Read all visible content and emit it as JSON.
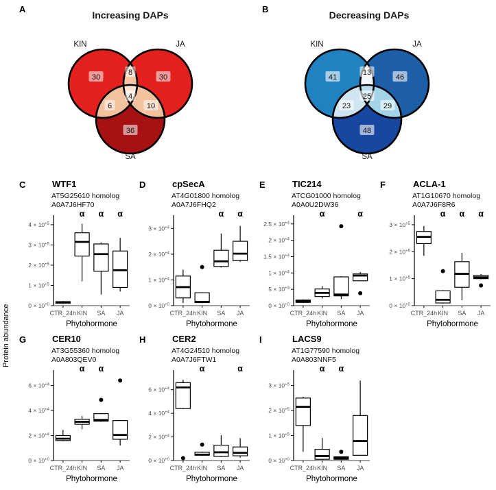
{
  "figure": {
    "ylabel_shared": "Protein abundance",
    "alpha_symbol": "α",
    "text_colors": {
      "axis_text": "#4d4d4d",
      "axis_line": "#000000",
      "box_fill": "#ffffff"
    }
  },
  "chart_data": [
    {
      "type": "venn",
      "letter": "A",
      "title": "Increasing DAPs",
      "sets": [
        "KIN",
        "JA",
        "SA"
      ],
      "colors": {
        "kin": "#e2201d",
        "ja": "#e2201d",
        "sa": "#a81114",
        "kin_ja": "#f6c5a3",
        "kin_sa": "#f5c2a0",
        "ja_sa": "#f5c2a0",
        "center": "#fbe3d2",
        "outline": "#000000",
        "chip": "rgba(255,255,255,0.55)"
      },
      "counts": {
        "kin": "30",
        "ja": "30",
        "sa": "36",
        "kin_ja": "8",
        "kin_sa": "6",
        "ja_sa": "10",
        "center": "4"
      }
    },
    {
      "type": "venn",
      "letter": "B",
      "title": "Decreasing DAPs",
      "sets": [
        "KIN",
        "JA",
        "SA"
      ],
      "colors": {
        "kin": "#2182c1",
        "ja": "#1d5fa9",
        "sa": "#17479e",
        "kin_ja": "#f3f7fb",
        "kin_sa": "#d0e5f2",
        "ja_sa": "#a3d4e8",
        "center": "#badcec",
        "outline": "#000000",
        "chip": "rgba(255,255,255,0.6)"
      },
      "counts": {
        "kin": "41",
        "ja": "46",
        "sa": "48",
        "kin_ja": "13",
        "kin_sa": "23",
        "ja_sa": "29",
        "center": "25"
      }
    },
    {
      "type": "boxplot",
      "letter": "C",
      "title": "WTF1",
      "subtitle": [
        "AT5G25610 homolog",
        "A0A7J6HF70"
      ],
      "xlabel": "Phytohormone",
      "categories": [
        "CTR_24h",
        "KIN",
        "SA",
        "JA"
      ],
      "alpha": [
        0,
        1,
        1,
        1
      ],
      "ylim": [
        0,
        420000
      ],
      "yticks": [
        {
          "v": 0,
          "m": "0",
          "e": "+0"
        },
        {
          "v": 100000,
          "m": "1",
          "e": "+5"
        },
        {
          "v": 200000,
          "m": "2",
          "e": "+5"
        },
        {
          "v": 300000,
          "m": "3",
          "e": "+5"
        },
        {
          "v": 400000,
          "m": "4",
          "e": "+5"
        }
      ],
      "boxes": [
        {
          "low": 9000,
          "q1": 12000,
          "median": 16000,
          "q3": 20000,
          "high": 23000,
          "outliers": []
        },
        {
          "low": 120000,
          "q1": 245000,
          "median": 315000,
          "q3": 360000,
          "high": 405000,
          "outliers": []
        },
        {
          "low": 55000,
          "q1": 170000,
          "median": 255000,
          "q3": 305000,
          "high": 312000,
          "outliers": []
        },
        {
          "low": 70000,
          "q1": 90000,
          "median": 175000,
          "q3": 270000,
          "high": 335000,
          "outliers": []
        }
      ]
    },
    {
      "type": "boxplot",
      "letter": "D",
      "title": "cpSecA",
      "subtitle": [
        "AT4G01800 homolog",
        "A0A7J6FHQ2"
      ],
      "xlabel": "Phytohormone",
      "categories": [
        "CTR_24h",
        "KIN",
        "SA",
        "JA"
      ],
      "alpha": [
        0,
        0,
        1,
        1
      ],
      "ylim": [
        0,
        33000
      ],
      "yticks": [
        {
          "v": 0,
          "m": "0",
          "e": "+0"
        },
        {
          "v": 10000,
          "m": "1",
          "e": "+4"
        },
        {
          "v": 20000,
          "m": "2",
          "e": "+4"
        },
        {
          "v": 30000,
          "m": "3",
          "e": "+4"
        }
      ],
      "boxes": [
        {
          "low": 1000,
          "q1": 3000,
          "median": 7200,
          "q3": 11500,
          "high": 14000,
          "outliers": []
        },
        {
          "low": 1000,
          "q1": 1200,
          "median": 1500,
          "q3": 5000,
          "high": 5200,
          "outliers": [
            15000
          ]
        },
        {
          "low": 14800,
          "q1": 15200,
          "median": 17200,
          "q3": 21500,
          "high": 28000,
          "outliers": []
        },
        {
          "low": 17000,
          "q1": 17500,
          "median": 20200,
          "q3": 25000,
          "high": 31000,
          "outliers": []
        }
      ]
    },
    {
      "type": "boxplot",
      "letter": "E",
      "title": "TIC214",
      "subtitle": [
        "ATCG01000 homolog",
        "A0A0U2DW36"
      ],
      "xlabel": "Phytohormone",
      "categories": [
        "CTR_24h",
        "KIN",
        "SA",
        "JA"
      ],
      "alpha": [
        0,
        1,
        0,
        1
      ],
      "ylim": [
        0,
        26000
      ],
      "yticks": [
        {
          "v": 0,
          "m": "0",
          "e": "+0"
        },
        {
          "v": 5000,
          "m": "5",
          "e": "+3"
        },
        {
          "v": 10000,
          "m": "1",
          "e": "+4"
        },
        {
          "v": 15000,
          "m": "1.5",
          "e": "+4"
        },
        {
          "v": 20000,
          "m": "2",
          "e": "+4"
        },
        {
          "v": 25000,
          "m": "2.5",
          "e": "+4"
        }
      ],
      "boxes": [
        {
          "low": 800,
          "q1": 1000,
          "median": 1300,
          "q3": 1700,
          "high": 1900,
          "outliers": []
        },
        {
          "low": 2200,
          "q1": 2800,
          "median": 3900,
          "q3": 5100,
          "high": 6000,
          "outliers": []
        },
        {
          "low": 2000,
          "q1": 3000,
          "median": 3400,
          "q3": 8800,
          "high": 9000,
          "outliers": [
            24300
          ]
        },
        {
          "low": 7500,
          "q1": 7600,
          "median": 9200,
          "q3": 9700,
          "high": 10300,
          "outliers": [
            3800
          ]
        }
      ]
    },
    {
      "type": "boxplot",
      "letter": "F",
      "title": "ACLA-1",
      "subtitle": [
        "AT1G10670 homolog",
        "A0A7J6F8R6"
      ],
      "xlabel": "Phytohormone",
      "categories": [
        "CTR_24h",
        "KIN",
        "SA",
        "JA"
      ],
      "alpha": [
        0,
        1,
        1,
        1
      ],
      "ylim": [
        0,
        315000
      ],
      "yticks": [
        {
          "v": 0,
          "m": "0",
          "e": "+0"
        },
        {
          "v": 100000,
          "m": "1",
          "e": "+5"
        },
        {
          "v": 200000,
          "m": "2",
          "e": "+5"
        },
        {
          "v": 300000,
          "m": "3",
          "e": "+5"
        }
      ],
      "boxes": [
        {
          "low": 185000,
          "q1": 230000,
          "median": 255000,
          "q3": 275000,
          "high": 295000,
          "outliers": []
        },
        {
          "low": 8000,
          "q1": 10000,
          "median": 22000,
          "q3": 55000,
          "high": 57000,
          "outliers": [
            128000
          ]
        },
        {
          "low": 20000,
          "q1": 68000,
          "median": 118000,
          "q3": 163000,
          "high": 195000,
          "outliers": []
        },
        {
          "low": 98000,
          "q1": 100000,
          "median": 105000,
          "q3": 112000,
          "high": 117000,
          "outliers": [
            75000
          ]
        }
      ]
    },
    {
      "type": "boxplot",
      "letter": "G",
      "title": "CER10",
      "subtitle": [
        "AT3G55360 homolog",
        "A0A803QEV0"
      ],
      "xlabel": "Phytohormone",
      "categories": [
        "CTR_24h",
        "KIN",
        "SA",
        "JA"
      ],
      "alpha": [
        0,
        1,
        1,
        0
      ],
      "ylim": [
        0,
        68000
      ],
      "yticks": [
        {
          "v": 0,
          "m": "0",
          "e": "+0"
        },
        {
          "v": 20000,
          "m": "2",
          "e": "+4"
        },
        {
          "v": 40000,
          "m": "4",
          "e": "+4"
        },
        {
          "v": 60000,
          "m": "6",
          "e": "+4"
        }
      ],
      "boxes": [
        {
          "low": 15500,
          "q1": 16000,
          "median": 17500,
          "q3": 20000,
          "high": 24500,
          "outliers": []
        },
        {
          "low": 25000,
          "q1": 29000,
          "median": 31000,
          "q3": 33000,
          "high": 35500,
          "outliers": []
        },
        {
          "low": 31000,
          "q1": 31500,
          "median": 32500,
          "q3": 37500,
          "high": 38000,
          "outliers": [
            48500
          ]
        },
        {
          "low": 12000,
          "q1": 17000,
          "median": 20500,
          "q3": 32000,
          "high": 32500,
          "outliers": [
            64000
          ]
        }
      ]
    },
    {
      "type": "boxplot",
      "letter": "H",
      "title": "CER2",
      "subtitle": [
        "AT4G24510 homolog",
        "A0A7J6FTW1"
      ],
      "xlabel": "Phytohormone",
      "categories": [
        "CTR_24h",
        "KIN",
        "SA",
        "JA"
      ],
      "alpha": [
        0,
        1,
        0,
        1
      ],
      "ylim": [
        0,
        72000
      ],
      "yticks": [
        {
          "v": 0,
          "m": "0",
          "e": "+0"
        },
        {
          "v": 20000,
          "m": "2",
          "e": "+4"
        },
        {
          "v": 40000,
          "m": "4",
          "e": "+4"
        },
        {
          "v": 60000,
          "m": "6",
          "e": "+4"
        }
      ],
      "boxes": [
        {
          "low": 43500,
          "q1": 44000,
          "median": 62000,
          "q3": 66000,
          "high": 68500,
          "outliers": [
            2000
          ]
        },
        {
          "low": 4000,
          "q1": 4500,
          "median": 5000,
          "q3": 7000,
          "high": 7500,
          "outliers": [
            13500
          ]
        },
        {
          "low": 3000,
          "q1": 3500,
          "median": 7000,
          "q3": 13000,
          "high": 21500,
          "outliers": []
        },
        {
          "low": 2500,
          "q1": 4000,
          "median": 6500,
          "q3": 11500,
          "high": 19000,
          "outliers": []
        }
      ]
    },
    {
      "type": "boxplot",
      "letter": "I",
      "title": "LACS9",
      "subtitle": [
        "AT1G77590 homolog",
        "A0A803NNF5"
      ],
      "xlabel": "Phytohormone",
      "categories": [
        "CTR_24h",
        "KIN",
        "SA",
        "JA"
      ],
      "alpha": [
        0,
        1,
        1,
        0
      ],
      "ylim": [
        0,
        340000
      ],
      "yticks": [
        {
          "v": 0,
          "m": "0",
          "e": "+0"
        },
        {
          "v": 100000,
          "m": "1",
          "e": "+5"
        },
        {
          "v": 200000,
          "m": "2",
          "e": "+5"
        },
        {
          "v": 300000,
          "m": "3",
          "e": "+5"
        }
      ],
      "boxes": [
        {
          "low": 35000,
          "q1": 140000,
          "median": 215000,
          "q3": 250000,
          "high": 255000,
          "outliers": []
        },
        {
          "low": 3000,
          "q1": 5000,
          "median": 18000,
          "q3": 45000,
          "high": 90000,
          "outliers": []
        },
        {
          "low": 3000,
          "q1": 5000,
          "median": 10000,
          "q3": 15000,
          "high": 16000,
          "outliers": [
            35000
          ]
        },
        {
          "low": 20000,
          "q1": 21000,
          "median": 78000,
          "q3": 180000,
          "high": 320000,
          "outliers": []
        }
      ]
    }
  ]
}
